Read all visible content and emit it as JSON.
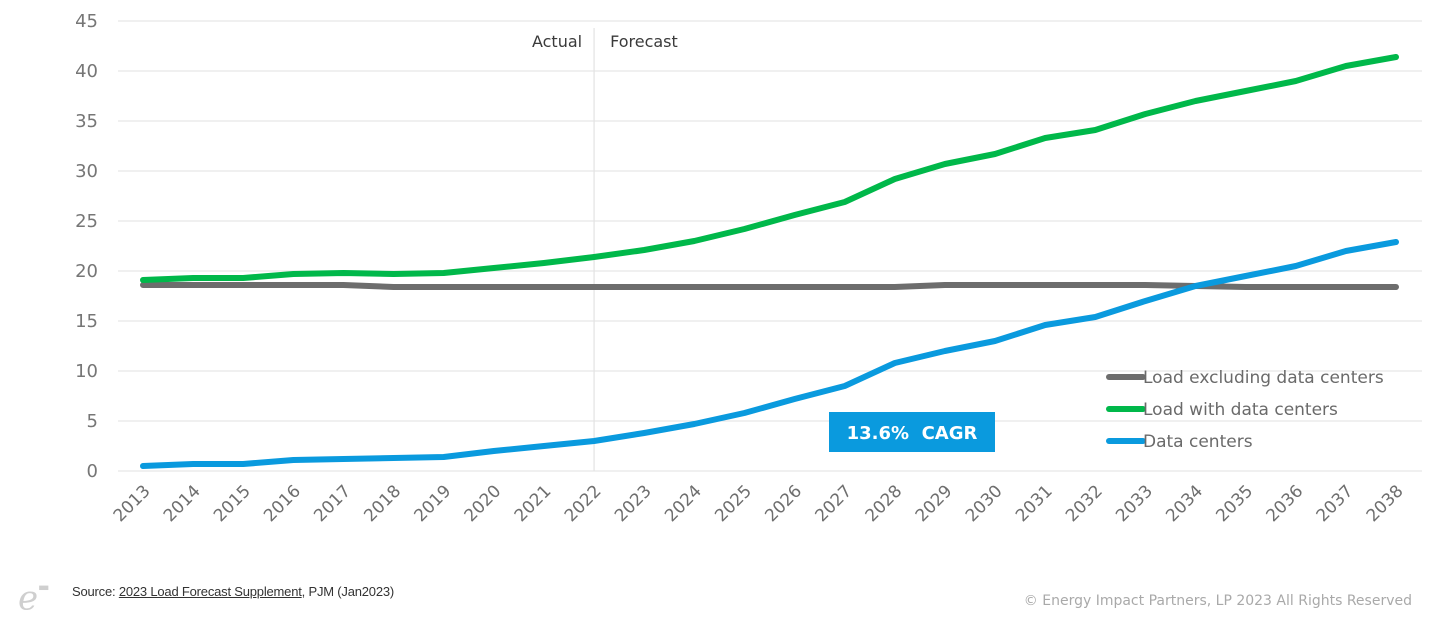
{
  "chart_data": {
    "type": "line",
    "title": "",
    "xlabel": "",
    "ylabel": "",
    "ylim": [
      0,
      45
    ],
    "yticks": [
      0,
      5,
      10,
      15,
      20,
      25,
      30,
      35,
      40,
      45
    ],
    "grid": true,
    "x": [
      2013,
      2014,
      2015,
      2016,
      2017,
      2018,
      2019,
      2020,
      2021,
      2022,
      2023,
      2024,
      2025,
      2026,
      2027,
      2028,
      2029,
      2030,
      2031,
      2032,
      2033,
      2034,
      2035,
      2036,
      2037,
      2038
    ],
    "series": [
      {
        "name": "Load excluding data centers",
        "color": "#6d6d6d",
        "values": [
          18.6,
          18.6,
          18.6,
          18.6,
          18.6,
          18.4,
          18.4,
          18.4,
          18.4,
          18.4,
          18.4,
          18.4,
          18.4,
          18.4,
          18.4,
          18.4,
          18.6,
          18.6,
          18.6,
          18.6,
          18.6,
          18.5,
          18.4,
          18.4,
          18.4,
          18.4
        ]
      },
      {
        "name": "Load with data centers",
        "color": "#00b84a",
        "values": [
          19.1,
          19.3,
          19.3,
          19.7,
          19.8,
          19.7,
          19.8,
          20.3,
          20.8,
          21.4,
          22.1,
          23.0,
          24.2,
          25.6,
          26.9,
          29.2,
          30.7,
          31.7,
          33.3,
          34.1,
          35.7,
          37.0,
          38.0,
          39.0,
          40.5,
          41.4
        ]
      },
      {
        "name": "Data centers",
        "color": "#0a9ade",
        "values": [
          0.5,
          0.7,
          0.7,
          1.1,
          1.2,
          1.3,
          1.4,
          2.0,
          2.5,
          3.0,
          3.8,
          4.7,
          5.8,
          7.2,
          8.5,
          10.8,
          12.0,
          13.0,
          14.6,
          15.4,
          17.0,
          18.5,
          19.5,
          20.5,
          22.0,
          22.9
        ]
      }
    ],
    "legend": {
      "placement": "bottom-right",
      "entries": [
        "Load excluding data centers",
        "Load with data centers",
        "Data centers"
      ]
    },
    "annotations": {
      "divider_year": 2022,
      "actual_label": "Actual",
      "forecast_label": "Forecast",
      "cagr_label": "13.6%  CAGR",
      "cagr_color": "#0a9ade"
    }
  },
  "footer": {
    "logo_text": "e",
    "source_prefix": "Source: ",
    "source_link": "2023 Load Forecast Supplement",
    "source_suffix": ", PJM (Jan2023)",
    "copyright": "© Energy Impact Partners, LP 2023 All Rights Reserved"
  }
}
